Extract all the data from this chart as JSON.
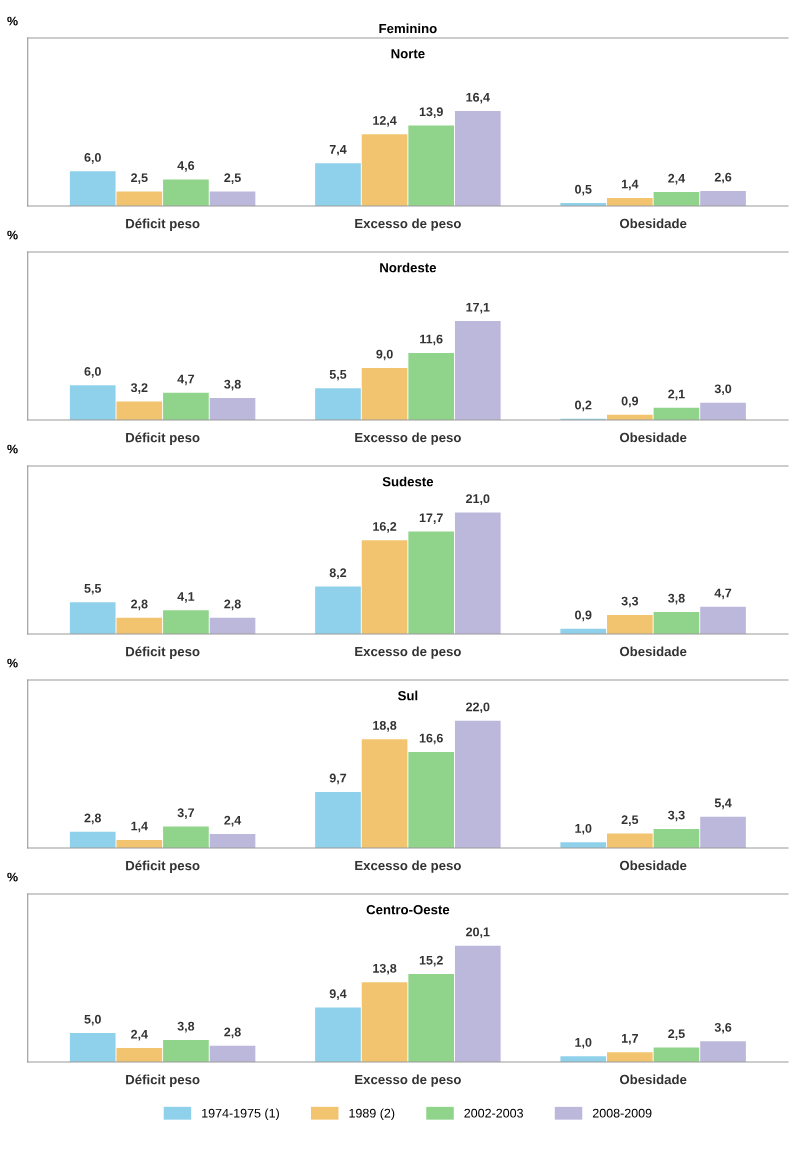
{
  "chart_data": [
    {
      "type": "bar",
      "title": "Feminino",
      "subtitle": "Norte",
      "ylabel": "%",
      "categories": [
        "Déficit peso",
        "Excesso de peso",
        "Obesidade"
      ],
      "tick_labels": "x",
      "legend": false,
      "series": [
        {
          "color": "#8fd0ea",
          "values": [
            6.0,
            7.4,
            0.5
          ],
          "value_labels": [
            "6,0",
            "7,4",
            "0,5"
          ]
        },
        {
          "color": "#f2c46f",
          "values": [
            2.5,
            12.4,
            1.4
          ],
          "value_labels": [
            "2,5",
            "12,4",
            "1,4"
          ]
        },
        {
          "color": "#8fd48a",
          "values": [
            4.6,
            13.9,
            2.4
          ],
          "value_labels": [
            "4,6",
            "13,9",
            "2,4"
          ]
        },
        {
          "color": "#bcb8db",
          "values": [
            2.5,
            16.4,
            2.6
          ],
          "value_labels": [
            "2,5",
            "16,4",
            "2,6"
          ]
        }
      ]
    },
    {
      "type": "bar",
      "title": "Nordeste",
      "ylabel": "%",
      "categories": [
        "Déficit peso",
        "Excesso de peso",
        "Obesidade"
      ],
      "tick_labels": "x",
      "legend": false,
      "series": [
        {
          "color": "#8fd0ea",
          "values": [
            6.0,
            5.5,
            0.2
          ],
          "value_labels": [
            "6,0",
            "5,5",
            "0,2"
          ]
        },
        {
          "color": "#f2c46f",
          "values": [
            3.2,
            9.0,
            0.9
          ],
          "value_labels": [
            "3,2",
            "9,0",
            "0,9"
          ]
        },
        {
          "color": "#8fd48a",
          "values": [
            4.7,
            11.6,
            2.1
          ],
          "value_labels": [
            "4,7",
            "11,6",
            "2,1"
          ]
        },
        {
          "color": "#bcb8db",
          "values": [
            3.8,
            17.1,
            3.0
          ],
          "value_labels": [
            "3,8",
            "17,1",
            "3,0"
          ]
        }
      ]
    },
    {
      "type": "bar",
      "title": "Sudeste",
      "ylabel": "%",
      "categories": [
        "Déficit peso",
        "Excesso de peso",
        "Obesidade"
      ],
      "tick_labels": "x",
      "legend": false,
      "series": [
        {
          "color": "#8fd0ea",
          "values": [
            5.5,
            8.2,
            0.9
          ],
          "value_labels": [
            "5,5",
            "8,2",
            "0,9"
          ]
        },
        {
          "color": "#f2c46f",
          "values": [
            2.8,
            16.2,
            3.3
          ],
          "value_labels": [
            "2,8",
            "16,2",
            "3,3"
          ]
        },
        {
          "color": "#8fd48a",
          "values": [
            4.1,
            17.7,
            3.8
          ],
          "value_labels": [
            "4,1",
            "17,7",
            "3,8"
          ]
        },
        {
          "color": "#bcb8db",
          "values": [
            2.8,
            21.0,
            4.7
          ],
          "value_labels": [
            "2,8",
            "21,0",
            "4,7"
          ]
        }
      ]
    },
    {
      "type": "bar",
      "title": "Sul",
      "ylabel": "%",
      "categories": [
        "Déficit peso",
        "Excesso de peso",
        "Obesidade"
      ],
      "tick_labels": "x",
      "legend": false,
      "series": [
        {
          "color": "#8fd0ea",
          "values": [
            2.8,
            9.7,
            1.0
          ],
          "value_labels": [
            "2,8",
            "9,7",
            "1,0"
          ]
        },
        {
          "color": "#f2c46f",
          "values": [
            1.4,
            18.8,
            2.5
          ],
          "value_labels": [
            "1,4",
            "18,8",
            "2,5"
          ]
        },
        {
          "color": "#8fd48a",
          "values": [
            3.7,
            16.6,
            3.3
          ],
          "value_labels": [
            "3,7",
            "16,6",
            "3,3"
          ]
        },
        {
          "color": "#bcb8db",
          "values": [
            2.4,
            22.0,
            5.4
          ],
          "value_labels": [
            "2,4",
            "22,0",
            "5,4"
          ]
        }
      ]
    },
    {
      "type": "bar",
      "title": "Centro-Oeste",
      "ylabel": "%",
      "categories": [
        "Déficit peso",
        "Excesso de peso",
        "Obesidade"
      ],
      "tick_labels": "x",
      "legend": "bottom",
      "series": [
        {
          "name": "1974-1975 (1)",
          "color": "#8fd0ea",
          "values": [
            5.0,
            9.4,
            1.0
          ],
          "value_labels": [
            "5,0",
            "9,4",
            "1,0"
          ]
        },
        {
          "name": "1989 (2)",
          "color": "#f2c46f",
          "values": [
            2.4,
            13.8,
            1.7
          ],
          "value_labels": [
            "2,4",
            "13,8",
            "1,7"
          ]
        },
        {
          "name": "2002-2003",
          "color": "#8fd48a",
          "values": [
            3.8,
            15.2,
            2.5
          ],
          "value_labels": [
            "3,8",
            "15,2",
            "2,5"
          ]
        },
        {
          "name": "2008-2009",
          "color": "#bcb8db",
          "values": [
            2.8,
            20.1,
            3.6
          ],
          "value_labels": [
            "2,8",
            "20,1",
            "3,6"
          ]
        }
      ]
    }
  ]
}
